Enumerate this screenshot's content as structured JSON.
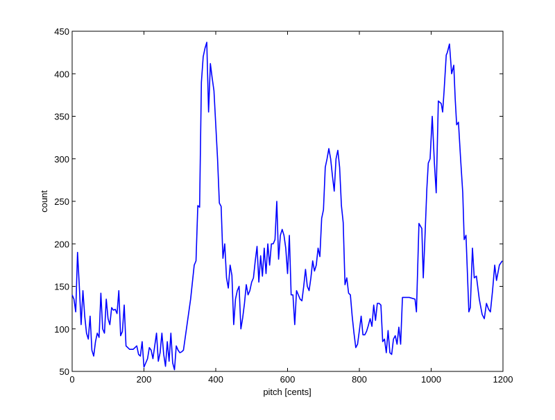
{
  "chart_data": {
    "type": "line",
    "xlabel": "pitch [cents]",
    "ylabel": "count",
    "xlim": [
      0,
      1200
    ],
    "xticks": [
      0,
      200,
      400,
      600,
      800,
      1000,
      1200
    ],
    "ylim": [
      50,
      450
    ],
    "yticks": [
      50,
      100,
      150,
      200,
      250,
      300,
      350,
      400,
      450
    ],
    "x": [
      0,
      5,
      10,
      15,
      20,
      25,
      30,
      35,
      40,
      45,
      50,
      55,
      60,
      65,
      70,
      75,
      80,
      85,
      90,
      95,
      100,
      105,
      110,
      115,
      120,
      125,
      130,
      135,
      140,
      145,
      150,
      160,
      170,
      180,
      185,
      190,
      195,
      200,
      205,
      210,
      215,
      220,
      225,
      230,
      235,
      240,
      245,
      250,
      255,
      260,
      265,
      270,
      275,
      280,
      285,
      290,
      295,
      300,
      305,
      310,
      320,
      330,
      340,
      345,
      350,
      355,
      360,
      365,
      370,
      375,
      380,
      385,
      390,
      395,
      400,
      405,
      410,
      415,
      420,
      425,
      430,
      435,
      440,
      445,
      450,
      455,
      460,
      465,
      470,
      475,
      480,
      485,
      490,
      495,
      500,
      505,
      510,
      515,
      520,
      525,
      530,
      535,
      540,
      545,
      550,
      555,
      560,
      565,
      570,
      575,
      580,
      585,
      590,
      595,
      600,
      605,
      610,
      615,
      620,
      625,
      630,
      635,
      640,
      645,
      650,
      655,
      660,
      665,
      670,
      675,
      680,
      685,
      690,
      695,
      700,
      705,
      710,
      715,
      720,
      725,
      730,
      735,
      740,
      745,
      750,
      755,
      760,
      765,
      770,
      775,
      780,
      785,
      790,
      795,
      800,
      805,
      810,
      815,
      820,
      825,
      830,
      835,
      840,
      845,
      850,
      855,
      860,
      865,
      870,
      875,
      880,
      885,
      890,
      895,
      900,
      905,
      910,
      915,
      920,
      939,
      955,
      959,
      966,
      974,
      978,
      982,
      988,
      992,
      997,
      1003,
      1009,
      1014,
      1020,
      1028,
      1032,
      1036,
      1042,
      1045,
      1051,
      1057,
      1063,
      1067,
      1071,
      1076,
      1082,
      1088,
      1092,
      1097,
      1105,
      1109,
      1115,
      1120,
      1126,
      1134,
      1142,
      1148,
      1154,
      1160,
      1165,
      1171,
      1177,
      1182,
      1190,
      1198
    ],
    "series": [
      {
        "color": "#0000ff",
        "values": [
          140,
          135,
          120,
          190,
          150,
          105,
          145,
          115,
          95,
          88,
          115,
          75,
          68,
          85,
          95,
          90,
          142,
          100,
          95,
          135,
          112,
          105,
          125,
          122,
          123,
          118,
          145,
          92,
          97,
          128,
          80,
          76,
          76,
          80,
          70,
          68,
          85,
          55,
          60,
          65,
          78,
          75,
          65,
          80,
          95,
          62,
          72,
          95,
          70,
          56,
          85,
          62,
          95,
          60,
          52,
          80,
          75,
          72,
          73,
          75,
          105,
          135,
          175,
          180,
          245,
          243,
          390,
          420,
          430,
          437,
          355,
          412,
          395,
          380,
          340,
          300,
          248,
          244,
          183,
          200,
          160,
          148,
          175,
          163,
          105,
          135,
          145,
          150,
          100,
          113,
          130,
          152,
          140,
          145,
          155,
          160,
          180,
          197,
          155,
          186,
          162,
          195,
          165,
          200,
          175,
          200,
          200,
          205,
          250,
          182,
          210,
          217,
          210,
          195,
          165,
          210,
          140,
          140,
          105,
          145,
          140,
          135,
          133,
          150,
          170,
          150,
          145,
          160,
          180,
          168,
          175,
          195,
          185,
          230,
          240,
          290,
          300,
          312,
          300,
          280,
          262,
          300,
          310,
          290,
          245,
          225,
          152,
          160,
          142,
          140,
          115,
          95,
          78,
          82,
          98,
          115,
          93,
          93,
          97,
          104,
          112,
          103,
          128,
          110,
          130,
          130,
          128,
          85,
          88,
          72,
          98,
          72,
          70,
          88,
          92,
          82,
          102,
          82,
          137,
          137,
          135,
          120,
          224,
          218,
          160,
          200,
          265,
          295,
          300,
          350,
          295,
          260,
          368,
          365,
          355,
          380,
          422,
          425,
          435,
          400,
          410,
          370,
          340,
          343,
          300,
          260,
          205,
          210,
          120,
          125,
          195,
          160,
          162,
          135,
          117,
          112,
          130,
          123,
          120,
          145,
          175,
          157,
          175,
          180
        ]
      }
    ]
  }
}
